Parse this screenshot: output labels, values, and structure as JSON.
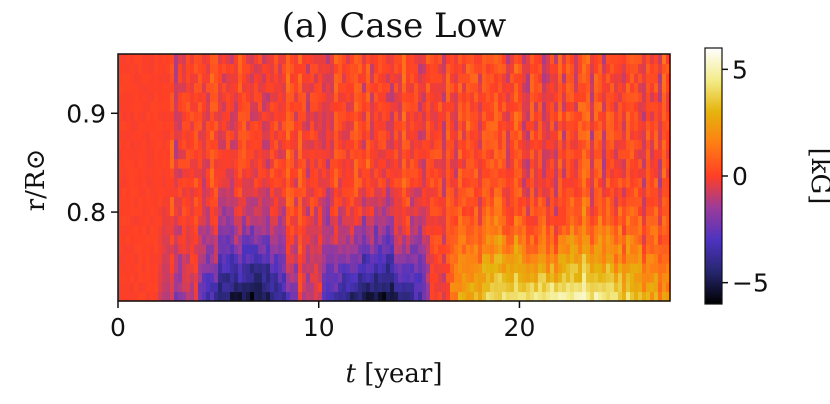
{
  "chart_data": {
    "type": "heatmap",
    "title": "(a) Case Low",
    "xlabel": "t [year]",
    "xlabel_italic_symbol": "t",
    "xlabel_rest": " [year]",
    "ylabel": "r/R⊙",
    "xlim": [
      0,
      27.5
    ],
    "ylim": [
      0.71,
      0.96
    ],
    "x_ticks": [
      0,
      10,
      20
    ],
    "x_tick_labels": [
      "0",
      "10",
      "20"
    ],
    "y_ticks": [
      0.8,
      0.9
    ],
    "y_tick_labels": [
      "0.8",
      "0.9"
    ],
    "colorbar": {
      "label": "[kG]",
      "range": [
        -6,
        6
      ],
      "ticks": [
        -5,
        0,
        5
      ],
      "tick_labels": [
        "−5",
        "0",
        "5"
      ],
      "colormap": "CMRmap",
      "color_stops": [
        "#000000",
        "#26266e",
        "#4d33c0",
        "#9b3b9b",
        "#ff3f26",
        "#ff7d14",
        "#e5b30d",
        "#f3ec8a",
        "#ffffff"
      ]
    },
    "field_description_by_time": [
      {
        "x": [
          0,
          2
        ],
        "surface": 0,
        "base": 0
      },
      {
        "x": [
          2,
          4
        ],
        "surface": 0,
        "base": -1.5
      },
      {
        "x": [
          4,
          9
        ],
        "surface": 0,
        "base": -5.5
      },
      {
        "x": [
          9,
          10.2
        ],
        "surface": 0,
        "base": -1
      },
      {
        "x": [
          10.2,
          15.5
        ],
        "surface": 0,
        "base": -5.5
      },
      {
        "x": [
          15.5,
          16.5
        ],
        "surface": 0,
        "base": 0
      },
      {
        "x": [
          16.5,
          27.5
        ],
        "surface": 0,
        "base": 5
      }
    ]
  }
}
